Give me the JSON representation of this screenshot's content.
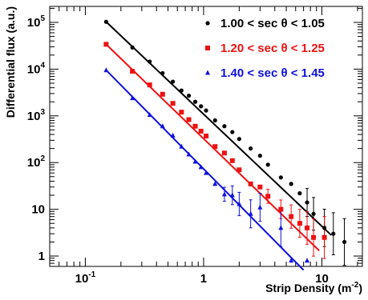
{
  "chart_data": {
    "type": "scatter",
    "xlabel": "Strip Density (m",
    "xlabel_sup": "-2",
    "xlabel_end": ")",
    "ylabel": "Differential flux (a.u.)",
    "x_scale": "log",
    "y_scale": "log",
    "xlim": [
      0.05,
      22
    ],
    "ylim": [
      0.6,
      220000
    ],
    "x_ticks": [
      {
        "value": 0.1,
        "base": "10",
        "exp": "-1"
      },
      {
        "value": 1,
        "base": "1",
        "exp": ""
      },
      {
        "value": 10,
        "base": "10",
        "exp": ""
      }
    ],
    "y_ticks": [
      {
        "value": 1,
        "base": "1",
        "exp": ""
      },
      {
        "value": 10,
        "base": "10",
        "exp": ""
      },
      {
        "value": 100,
        "base": "10",
        "exp": "2"
      },
      {
        "value": 1000,
        "base": "10",
        "exp": "3"
      },
      {
        "value": 10000,
        "base": "10",
        "exp": "4"
      },
      {
        "value": 100000,
        "base": "10",
        "exp": "5"
      }
    ],
    "grid": false,
    "legend_position": "top-right",
    "series": [
      {
        "name": "1.00 < sec θ < 1.05",
        "color": "#000000",
        "marker": "circle",
        "x": [
          0.15,
          0.25,
          0.35,
          0.45,
          0.55,
          0.65,
          0.75,
          0.85,
          0.95,
          1.05,
          1.25,
          1.5,
          1.75,
          2.0,
          2.5,
          3.0,
          3.5,
          4.5,
          5.5,
          6.5,
          7.5,
          8.5,
          10.5,
          12.5,
          15.5
        ],
        "y": [
          103000,
          29000,
          14500,
          8200,
          5400,
          3500,
          2700,
          2000,
          1600,
          1300,
          800,
          600,
          450,
          320,
          200,
          140,
          90,
          48,
          35,
          22,
          14,
          8,
          4,
          3,
          2
        ],
        "err": [
          0,
          0,
          0,
          0,
          0,
          0,
          0,
          0,
          0,
          0,
          0,
          0,
          0,
          0,
          0,
          0,
          0,
          0,
          0,
          0,
          0.3,
          0.35,
          0.4,
          0.45,
          0.5
        ],
        "fit_x": [
          0.15,
          12
        ],
        "fit_y": [
          103000,
          2.8
        ]
      },
      {
        "name": "1.20 < sec θ < 1.25",
        "color": "#ee1111",
        "marker": "square",
        "x": [
          0.15,
          0.25,
          0.35,
          0.45,
          0.55,
          0.65,
          0.75,
          0.85,
          0.95,
          1.05,
          1.25,
          1.5,
          1.75,
          2.0,
          2.5,
          3.0,
          3.5,
          4.5,
          5.5,
          6.5,
          7.5,
          8.5,
          10.5
        ],
        "y": [
          34000,
          9000,
          4600,
          2900,
          1850,
          1200,
          830,
          600,
          470,
          370,
          220,
          160,
          110,
          70,
          35,
          30,
          19,
          10,
          7,
          5,
          4,
          2.5,
          2.5
        ],
        "err": [
          0,
          0,
          0,
          0,
          0,
          0,
          0,
          0,
          0,
          0,
          0,
          0,
          0,
          0,
          0,
          0,
          0.15,
          0.2,
          0.25,
          0.3,
          0.35,
          0.4,
          0.45
        ],
        "fit_x": [
          0.15,
          9.5
        ],
        "fit_y": [
          34000,
          1.3
        ]
      },
      {
        "name": "1.40 < sec θ < 1.45",
        "color": "#1010dd",
        "marker": "triangle",
        "x": [
          0.15,
          0.25,
          0.35,
          0.45,
          0.55,
          0.65,
          0.75,
          0.85,
          0.95,
          1.05,
          1.25,
          1.5,
          1.75,
          2.0,
          2.5,
          3.0,
          4.5,
          5.5,
          7.5
        ],
        "y": [
          9500,
          2400,
          1050,
          600,
          380,
          220,
          150,
          105,
          80,
          60,
          35,
          21,
          20,
          13,
          8,
          11,
          4,
          0.8,
          0.8
        ],
        "err": [
          0,
          0,
          0,
          0,
          0,
          0,
          0,
          0,
          0,
          0,
          0,
          0.15,
          0.2,
          0.25,
          0.3,
          0.3,
          0.4,
          0,
          0
        ],
        "fit_x": [
          0.15,
          7
        ],
        "fit_y": [
          9500,
          0.5
        ]
      }
    ]
  }
}
